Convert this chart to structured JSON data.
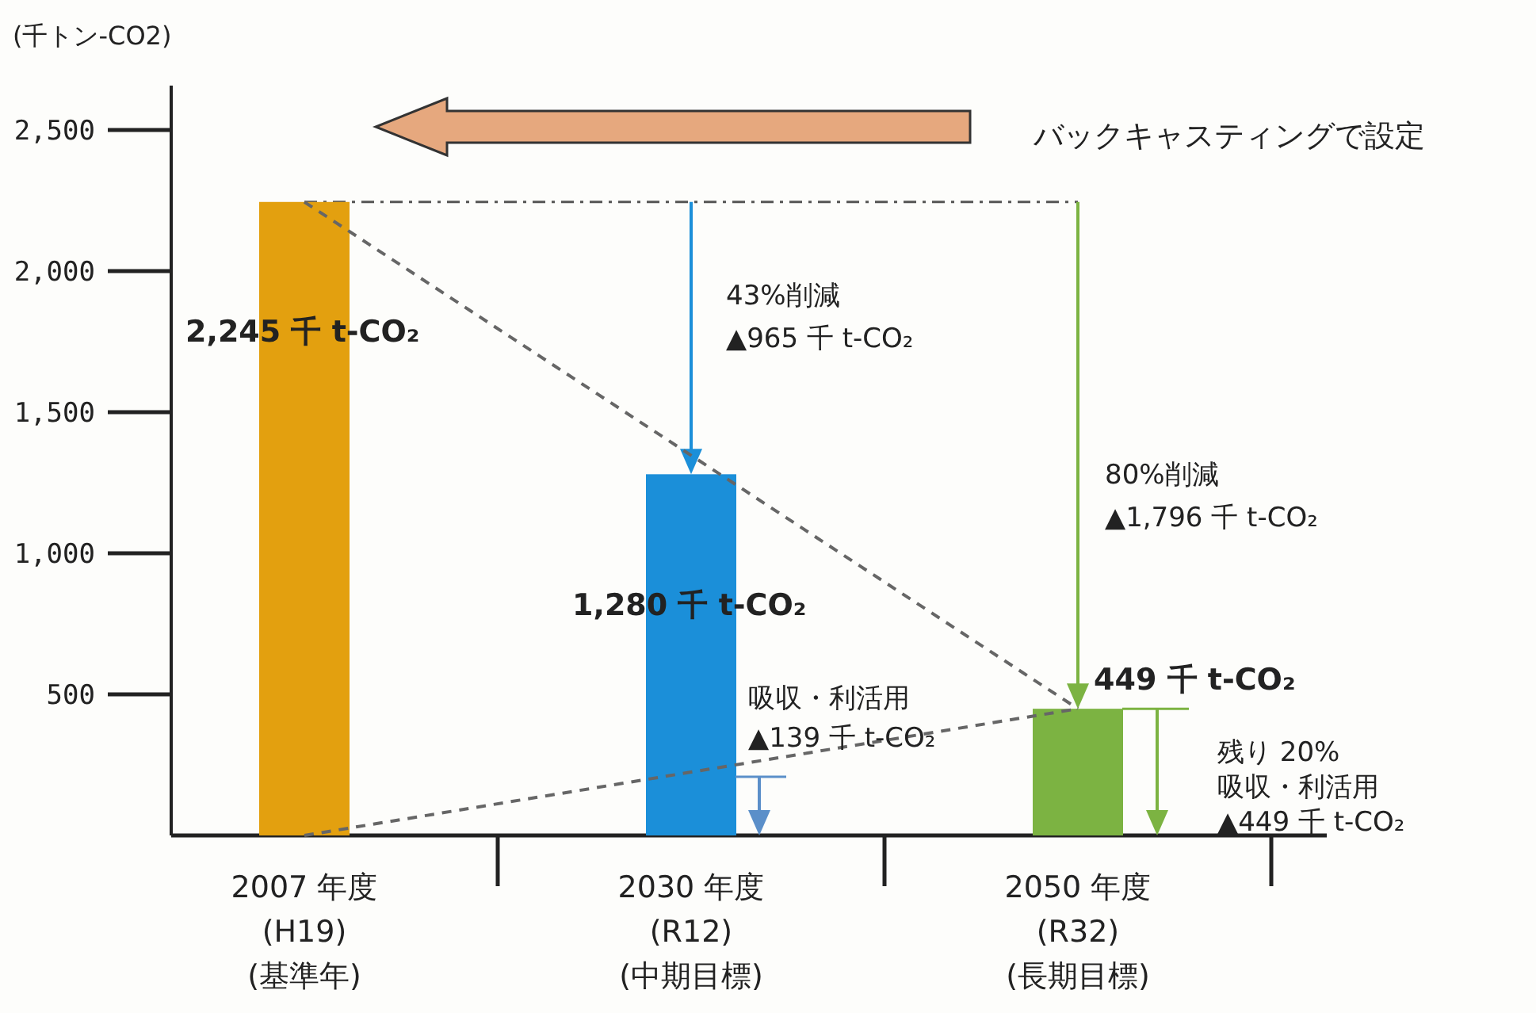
{
  "chart_data": {
    "type": "bar",
    "ylabel": "(千トン-CO2)",
    "categories": [
      "2007 年度\n(H19)\n(基準年)",
      "2030 年度\n(R12)\n(中期目標)",
      "2050 年度\n(R32)\n(長期目標)"
    ],
    "values": [
      2245,
      1280,
      449
    ],
    "colors": [
      "#e3a00f",
      "#1b8fd9",
      "#7cb342"
    ],
    "value_labels": [
      "2,245 千 t-CO₂",
      "1,280 千 t-CO₂",
      "449 千 t-CO₂"
    ],
    "ylim": [
      0,
      2500
    ],
    "yticks": [
      500,
      {
        "value": 1000,
        "label": "1,000"
      },
      {
        "value": 1500,
        "label": "1,500"
      },
      {
        "value": 2000,
        "label": "2,000"
      },
      {
        "value": 2500,
        "label": "2,500"
      }
    ],
    "series": [
      {
        "type": "line",
        "color": "#666666",
        "line_style": "dashed",
        "x": [
          "2007 年度\n(H19)\n(基準年)",
          "2050 年度\n(R32)\n(長期目標)"
        ],
        "values": [
          2245,
          449
        ]
      },
      {
        "type": "line",
        "color": "#666666",
        "line_style": "dashed",
        "x": [
          "2007 年度\n(H19)\n(基準年)",
          "2050 年度\n(R32)\n(長期目標)"
        ],
        "values": [
          0,
          449
        ]
      }
    ],
    "ref_lines": [
      {
        "axis": "y",
        "value": 2245,
        "color": "#555555"
      }
    ],
    "annotations": [
      "43%削減\n▲965 千 t-CO₂",
      "80%削減\n▲1,796 千 t-CO₂",
      "吸収・利活用\n▲139 千 t-CO₂",
      "残り 20%\n吸収・利活用\n▲449 千 t-CO₂",
      "バックキャスティングで設定"
    ]
  }
}
